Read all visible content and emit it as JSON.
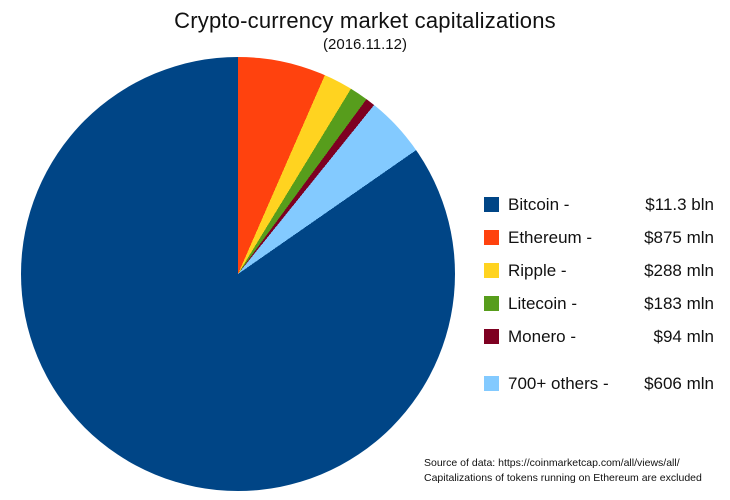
{
  "chart_data": {
    "type": "pie",
    "title": "Crypto-currency market capitalizations",
    "subtitle": "(2016.11.12)",
    "unit": "mln USD",
    "start_angle_deg": 0,
    "direction": "clockwise",
    "legend_position": "right",
    "slices": [
      {
        "label": "Bitcoin",
        "label_display": "Bitcoin -",
        "value_mln": 11300,
        "value_display": "$11.3 bln",
        "color": "#004586"
      },
      {
        "label": "Ethereum",
        "label_display": "Ethereum -",
        "value_mln": 875,
        "value_display": "$875 mln",
        "color": "#ff420e"
      },
      {
        "label": "Ripple",
        "label_display": "Ripple -",
        "value_mln": 288,
        "value_display": "$288 mln",
        "color": "#ffd320"
      },
      {
        "label": "Litecoin",
        "label_display": "Litecoin -",
        "value_mln": 183,
        "value_display": "$183 mln",
        "color": "#579d1c"
      },
      {
        "label": "Monero",
        "label_display": "Monero -",
        "value_mln": 94,
        "value_display": "$94 mln",
        "color": "#7e0021"
      },
      {
        "label": "700+ others",
        "label_display": "700+ others -",
        "value_mln": 606,
        "value_display": "$606 mln",
        "color": "#83caff"
      }
    ],
    "draw_order": [
      1,
      2,
      3,
      4,
      5,
      0
    ],
    "source_note": {
      "line1": "Source of data: https://coinmarketcap.com/all/views/all/",
      "line2": "Capitalizations of tokens running on Ethereum are excluded"
    }
  }
}
